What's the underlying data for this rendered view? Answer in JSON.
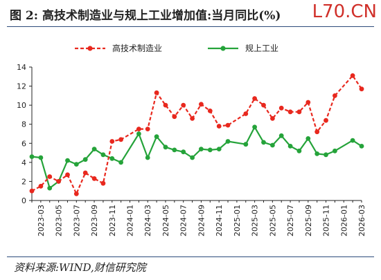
{
  "header": {
    "title": "图 2:  高技术制造业与规上工业增加值:当月同比(%)",
    "watermark": "L70.CN"
  },
  "footer": {
    "source": "资料来源:WIND,财信研究院"
  },
  "colors": {
    "series_hightech": "#e8281e",
    "series_industry": "#25a33a",
    "axis": "#222222",
    "rule": "#2b4a7a"
  },
  "chart_data": {
    "type": "line",
    "title": "",
    "xlabel": "",
    "ylabel": "",
    "ylim": [
      0,
      14
    ],
    "yticks": [
      0,
      2,
      4,
      6,
      8,
      10,
      12,
      14
    ],
    "grid": false,
    "legend_position": "top",
    "x": [
      "2023-02",
      "2023-03",
      "2023-04",
      "2023-05",
      "2023-06",
      "2023-07",
      "2023-08",
      "2023-09",
      "2023-10",
      "2023-11",
      "2023-12",
      "2024-02",
      "2024-03",
      "2024-04",
      "2024-05",
      "2024-06",
      "2024-07",
      "2024-08",
      "2024-09",
      "2024-10",
      "2024-11",
      "2024-12",
      "2025-02",
      "2025-03",
      "2025-04",
      "2025-05",
      "2025-06",
      "2025-07",
      "2025-08",
      "2025-09",
      "2025-10",
      "2025-11",
      "2025-12",
      "2026-02",
      "2026-03"
    ],
    "xtick_labels": [
      "2023-03",
      "2023-05",
      "2023-07",
      "2023-09",
      "2023-11",
      "2024-01",
      "2024-03",
      "2024-05",
      "2024-07",
      "2024-09",
      "2024-11",
      "2025-01",
      "2025-03",
      "2025-05",
      "2025-07",
      "2025-09",
      "2025-11",
      "2026-01",
      "2026-03"
    ],
    "series": [
      {
        "name": "高技术制造业",
        "style": "dashed",
        "values": [
          1.0,
          1.5,
          2.5,
          2.0,
          2.7,
          0.7,
          2.9,
          2.3,
          1.8,
          6.2,
          6.4,
          7.5,
          7.5,
          11.3,
          10.0,
          8.8,
          10.0,
          8.6,
          10.1,
          9.4,
          7.8,
          7.9,
          9.1,
          10.7,
          10.0,
          8.6,
          9.7,
          9.3,
          9.3,
          10.3,
          7.2,
          8.4,
          11.0,
          13.1,
          11.7
        ]
      },
      {
        "name": "规上工业",
        "style": "solid",
        "values": [
          4.6,
          4.5,
          1.3,
          2.0,
          4.2,
          3.8,
          4.3,
          5.4,
          4.8,
          4.4,
          4.0,
          7.0,
          4.5,
          6.7,
          5.6,
          5.3,
          5.1,
          4.5,
          5.4,
          5.3,
          5.4,
          6.2,
          5.9,
          7.7,
          6.1,
          5.8,
          6.8,
          5.7,
          5.2,
          6.5,
          4.9,
          4.8,
          5.2,
          6.3,
          5.7
        ]
      }
    ]
  }
}
